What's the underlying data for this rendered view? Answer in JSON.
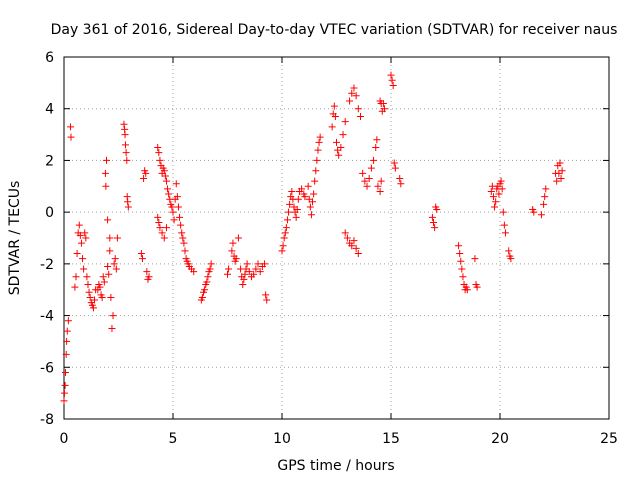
{
  "chart_data": {
    "type": "scatter",
    "title": "Day 361 of 2016, Sidereal Day-to-day VTEC variation (SDTVAR) for receiver naus",
    "xlabel": "GPS time / hours",
    "ylabel": "SDTVAR / TECUs",
    "xlim": [
      0,
      25
    ],
    "ylim": [
      -8,
      6
    ],
    "xticks": [
      "0",
      "5",
      "10",
      "15",
      "20",
      "25"
    ],
    "yticks": [
      "-8",
      "-6",
      "-4",
      "-2",
      "0",
      "2",
      "4",
      "6"
    ],
    "grid": true,
    "marker": "plus",
    "color": "#ff0000",
    "series": [
      {
        "name": "SDTVAR",
        "points": [
          [
            0.0,
            -7.3
          ],
          [
            0.02,
            -7.0
          ],
          [
            0.05,
            -6.7
          ],
          [
            0.07,
            -6.2
          ],
          [
            0.1,
            -5.5
          ],
          [
            0.12,
            -5.0
          ],
          [
            0.15,
            -4.6
          ],
          [
            0.2,
            -4.2
          ],
          [
            0.3,
            3.3
          ],
          [
            0.32,
            2.9
          ],
          [
            0.5,
            -2.9
          ],
          [
            0.55,
            -2.5
          ],
          [
            0.6,
            -1.6
          ],
          [
            0.65,
            -0.8
          ],
          [
            0.7,
            -0.5
          ],
          [
            0.75,
            -0.9
          ],
          [
            0.8,
            -1.2
          ],
          [
            0.85,
            -1.8
          ],
          [
            0.9,
            -2.2
          ],
          [
            0.95,
            -0.8
          ],
          [
            1.0,
            -1.0
          ],
          [
            1.05,
            -2.5
          ],
          [
            1.1,
            -2.8
          ],
          [
            1.15,
            -3.1
          ],
          [
            1.2,
            -3.3
          ],
          [
            1.25,
            -3.5
          ],
          [
            1.3,
            -3.6
          ],
          [
            1.35,
            -3.7
          ],
          [
            1.4,
            -3.4
          ],
          [
            1.45,
            -3.0
          ],
          [
            1.55,
            -3.0
          ],
          [
            1.6,
            -2.8
          ],
          [
            1.65,
            -2.9
          ],
          [
            1.7,
            -3.2
          ],
          [
            1.75,
            -3.3
          ],
          [
            1.8,
            -2.5
          ],
          [
            1.85,
            -2.7
          ],
          [
            1.9,
            1.5
          ],
          [
            1.92,
            1.0
          ],
          [
            1.95,
            2.0
          ],
          [
            2.0,
            -0.3
          ],
          [
            2.0,
            -2.1
          ],
          [
            2.05,
            -2.4
          ],
          [
            2.1,
            -1.5
          ],
          [
            2.1,
            -1.0
          ],
          [
            2.15,
            -3.3
          ],
          [
            2.2,
            -4.5
          ],
          [
            2.25,
            -4.0
          ],
          [
            2.3,
            -2.0
          ],
          [
            2.35,
            -1.8
          ],
          [
            2.4,
            -2.2
          ],
          [
            2.45,
            -1.0
          ],
          [
            2.75,
            3.4
          ],
          [
            2.78,
            3.2
          ],
          [
            2.8,
            3.0
          ],
          [
            2.82,
            2.6
          ],
          [
            2.85,
            2.3
          ],
          [
            2.88,
            2.0
          ],
          [
            2.9,
            0.6
          ],
          [
            2.92,
            0.4
          ],
          [
            2.95,
            0.2
          ],
          [
            3.55,
            -1.6
          ],
          [
            3.6,
            -1.8
          ],
          [
            3.65,
            1.3
          ],
          [
            3.7,
            1.6
          ],
          [
            3.75,
            1.5
          ],
          [
            3.8,
            -2.3
          ],
          [
            3.85,
            -2.6
          ],
          [
            3.9,
            -2.5
          ],
          [
            4.3,
            2.5
          ],
          [
            4.35,
            2.3
          ],
          [
            4.4,
            2.0
          ],
          [
            4.45,
            1.8
          ],
          [
            4.5,
            1.5
          ],
          [
            4.55,
            1.7
          ],
          [
            4.6,
            1.6
          ],
          [
            4.65,
            1.4
          ],
          [
            4.7,
            1.2
          ],
          [
            4.3,
            -0.2
          ],
          [
            4.35,
            -0.4
          ],
          [
            4.4,
            -0.6
          ],
          [
            4.5,
            -0.8
          ],
          [
            4.6,
            -1.0
          ],
          [
            4.7,
            -0.6
          ],
          [
            4.75,
            0.9
          ],
          [
            4.8,
            0.7
          ],
          [
            4.85,
            0.5
          ],
          [
            4.9,
            0.3
          ],
          [
            4.95,
            0.2
          ],
          [
            5.0,
            0.0
          ],
          [
            5.05,
            -0.3
          ],
          [
            5.1,
            0.5
          ],
          [
            5.15,
            1.1
          ],
          [
            5.2,
            0.6
          ],
          [
            5.25,
            0.2
          ],
          [
            5.3,
            -0.2
          ],
          [
            5.35,
            -0.5
          ],
          [
            5.4,
            -0.8
          ],
          [
            5.45,
            -1.0
          ],
          [
            5.5,
            -1.2
          ],
          [
            5.55,
            -1.5
          ],
          [
            5.6,
            -1.8
          ],
          [
            5.65,
            -1.9
          ],
          [
            5.7,
            -2.0
          ],
          [
            5.75,
            -2.1
          ],
          [
            5.85,
            -2.2
          ],
          [
            5.95,
            -2.3
          ],
          [
            6.3,
            -3.4
          ],
          [
            6.35,
            -3.3
          ],
          [
            6.4,
            -3.1
          ],
          [
            6.45,
            -3.0
          ],
          [
            6.5,
            -2.8
          ],
          [
            6.55,
            -2.7
          ],
          [
            6.6,
            -2.5
          ],
          [
            6.65,
            -2.3
          ],
          [
            6.7,
            -2.2
          ],
          [
            6.75,
            -2.0
          ],
          [
            7.5,
            -2.4
          ],
          [
            7.55,
            -2.2
          ],
          [
            7.7,
            -1.5
          ],
          [
            7.75,
            -1.2
          ],
          [
            7.8,
            -1.7
          ],
          [
            7.85,
            -1.9
          ],
          [
            7.9,
            -1.8
          ],
          [
            8.0,
            -1.0
          ],
          [
            8.1,
            -2.2
          ],
          [
            8.15,
            -2.5
          ],
          [
            8.2,
            -2.8
          ],
          [
            8.25,
            -2.6
          ],
          [
            8.3,
            -2.4
          ],
          [
            8.35,
            -2.2
          ],
          [
            8.4,
            -2.0
          ],
          [
            8.5,
            -2.3
          ],
          [
            8.6,
            -2.5
          ],
          [
            8.7,
            -2.4
          ],
          [
            8.8,
            -2.2
          ],
          [
            8.9,
            -2.0
          ],
          [
            9.0,
            -2.3
          ],
          [
            9.1,
            -2.1
          ],
          [
            9.2,
            -2.0
          ],
          [
            9.25,
            -3.2
          ],
          [
            9.3,
            -3.4
          ],
          [
            10.0,
            -1.5
          ],
          [
            10.05,
            -1.3
          ],
          [
            10.1,
            -1.0
          ],
          [
            10.15,
            -0.8
          ],
          [
            10.2,
            -0.6
          ],
          [
            10.25,
            -0.3
          ],
          [
            10.3,
            0.0
          ],
          [
            10.35,
            0.3
          ],
          [
            10.4,
            0.6
          ],
          [
            10.45,
            0.8
          ],
          [
            10.5,
            0.5
          ],
          [
            10.55,
            0.2
          ],
          [
            10.6,
            0.0
          ],
          [
            10.65,
            -0.2
          ],
          [
            10.7,
            0.1
          ],
          [
            10.75,
            0.5
          ],
          [
            10.8,
            0.8
          ],
          [
            10.9,
            0.9
          ],
          [
            11.0,
            0.7
          ],
          [
            11.05,
            0.6
          ],
          [
            11.2,
            1.0
          ],
          [
            11.25,
            0.5
          ],
          [
            11.3,
            0.2
          ],
          [
            11.35,
            -0.1
          ],
          [
            11.4,
            0.4
          ],
          [
            11.45,
            0.7
          ],
          [
            11.5,
            1.2
          ],
          [
            11.55,
            1.6
          ],
          [
            11.6,
            2.0
          ],
          [
            11.65,
            2.4
          ],
          [
            11.7,
            2.7
          ],
          [
            11.75,
            2.9
          ],
          [
            12.3,
            3.3
          ],
          [
            12.35,
            3.8
          ],
          [
            12.4,
            4.1
          ],
          [
            12.45,
            3.7
          ],
          [
            12.5,
            2.7
          ],
          [
            12.55,
            2.4
          ],
          [
            12.6,
            2.2
          ],
          [
            12.7,
            2.5
          ],
          [
            12.8,
            3.0
          ],
          [
            12.9,
            3.5
          ],
          [
            12.9,
            -0.8
          ],
          [
            13.0,
            -1.0
          ],
          [
            13.1,
            -1.2
          ],
          [
            13.2,
            -1.3
          ],
          [
            13.3,
            -1.1
          ],
          [
            13.4,
            -1.4
          ],
          [
            13.5,
            -1.6
          ],
          [
            13.1,
            4.3
          ],
          [
            13.2,
            4.6
          ],
          [
            13.3,
            4.8
          ],
          [
            13.4,
            4.5
          ],
          [
            13.5,
            4.0
          ],
          [
            13.6,
            3.7
          ],
          [
            13.7,
            1.5
          ],
          [
            13.8,
            1.2
          ],
          [
            13.9,
            1.0
          ],
          [
            14.0,
            1.3
          ],
          [
            14.1,
            1.7
          ],
          [
            14.2,
            2.0
          ],
          [
            14.3,
            2.5
          ],
          [
            14.35,
            2.8
          ],
          [
            14.4,
            1.0
          ],
          [
            14.5,
            0.8
          ],
          [
            14.55,
            1.2
          ],
          [
            14.5,
            4.3
          ],
          [
            14.55,
            4.2
          ],
          [
            14.6,
            3.9
          ],
          [
            14.65,
            4.2
          ],
          [
            14.7,
            4.0
          ],
          [
            15.0,
            5.3
          ],
          [
            15.05,
            5.1
          ],
          [
            15.1,
            4.9
          ],
          [
            15.15,
            1.9
          ],
          [
            15.2,
            1.7
          ],
          [
            15.4,
            1.3
          ],
          [
            15.45,
            1.1
          ],
          [
            16.9,
            -0.2
          ],
          [
            16.95,
            -0.4
          ],
          [
            17.0,
            -0.6
          ],
          [
            17.05,
            0.2
          ],
          [
            17.1,
            0.1
          ],
          [
            18.1,
            -1.3
          ],
          [
            18.15,
            -1.6
          ],
          [
            18.2,
            -1.9
          ],
          [
            18.25,
            -2.2
          ],
          [
            18.3,
            -2.5
          ],
          [
            18.35,
            -2.8
          ],
          [
            18.4,
            -3.0
          ],
          [
            18.45,
            -2.9
          ],
          [
            18.5,
            -3.0
          ],
          [
            18.85,
            -1.8
          ],
          [
            18.9,
            -2.8
          ],
          [
            18.95,
            -2.9
          ],
          [
            19.6,
            0.8
          ],
          [
            19.65,
            1.0
          ],
          [
            19.7,
            0.6
          ],
          [
            19.75,
            0.2
          ],
          [
            19.8,
            0.4
          ],
          [
            19.85,
            0.9
          ],
          [
            19.9,
            1.0
          ],
          [
            19.95,
            0.7
          ],
          [
            20.0,
            1.1
          ],
          [
            20.05,
            1.2
          ],
          [
            20.1,
            0.9
          ],
          [
            20.15,
            0.0
          ],
          [
            20.2,
            -0.5
          ],
          [
            20.25,
            -0.8
          ],
          [
            20.4,
            -1.5
          ],
          [
            20.45,
            -1.7
          ],
          [
            20.5,
            -1.8
          ],
          [
            21.5,
            0.1
          ],
          [
            21.55,
            0.0
          ],
          [
            21.9,
            -0.1
          ],
          [
            22.0,
            0.3
          ],
          [
            22.05,
            0.6
          ],
          [
            22.1,
            0.9
          ],
          [
            22.55,
            1.5
          ],
          [
            22.6,
            1.2
          ],
          [
            22.65,
            1.8
          ],
          [
            22.7,
            1.5
          ],
          [
            22.75,
            1.9
          ],
          [
            22.8,
            1.3
          ],
          [
            22.85,
            1.6
          ]
        ]
      }
    ]
  }
}
